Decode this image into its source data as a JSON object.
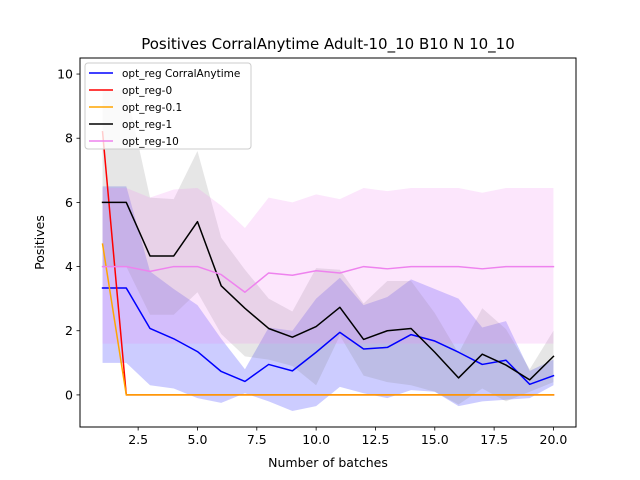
{
  "chart_data": {
    "type": "line",
    "title": "Positives CorralAnytime Adult-10_10 B10 N 10_10",
    "xlabel": "Number of batches",
    "ylabel": "Positives",
    "xlim": [
      0.05,
      20.95
    ],
    "ylim": [
      -1.0,
      10.5
    ],
    "xticks": [
      2.5,
      5.0,
      7.5,
      10.0,
      12.5,
      15.0,
      17.5,
      20.0
    ],
    "xtick_labels": [
      "2.5",
      "5.0",
      "7.5",
      "10.0",
      "12.5",
      "15.0",
      "17.5",
      "20.0"
    ],
    "yticks": [
      0,
      2,
      4,
      6,
      8,
      10
    ],
    "ytick_labels": [
      "0",
      "2",
      "4",
      "6",
      "8",
      "10"
    ],
    "legend_position": "upper-left",
    "x": [
      1,
      2,
      3,
      4,
      5,
      6,
      7,
      8,
      9,
      10,
      11,
      12,
      13,
      14,
      15,
      16,
      17,
      18,
      19,
      20
    ],
    "series": [
      {
        "name": "opt_reg CorralAnytime",
        "color": "#0000ff",
        "band_color": "#0000ff",
        "values": [
          3.33,
          3.33,
          2.07,
          1.75,
          1.35,
          0.73,
          0.42,
          0.95,
          0.75,
          1.33,
          1.95,
          1.43,
          1.48,
          1.88,
          1.68,
          1.33,
          0.95,
          1.08,
          0.33,
          0.6
        ],
        "lower": [
          1.0,
          1.0,
          0.3,
          0.2,
          -0.1,
          -0.25,
          0.05,
          -0.2,
          -0.5,
          -0.35,
          0.25,
          0.05,
          -0.1,
          0.15,
          0.1,
          -0.35,
          -0.2,
          -0.15,
          -0.1,
          0.3
        ],
        "upper": [
          6.5,
          6.5,
          3.85,
          3.3,
          2.8,
          1.75,
          0.8,
          2.1,
          2.0,
          3.0,
          3.65,
          2.8,
          3.05,
          3.6,
          3.3,
          3.0,
          2.1,
          2.3,
          0.75,
          1.1
        ]
      },
      {
        "name": "opt_reg-0",
        "color": "#ff0000",
        "values": [
          8.2,
          0.0,
          0.0,
          0.0,
          0.0,
          0.0,
          0.0,
          0.0,
          0.0,
          0.0,
          0.0,
          0.0,
          0.0,
          0.0,
          0.0,
          0.0,
          0.0,
          0.0,
          0.0,
          0.0
        ]
      },
      {
        "name": "opt_reg-0.1",
        "color": "#ffa500",
        "values": [
          4.7,
          0.0,
          0.0,
          0.0,
          0.0,
          0.0,
          0.0,
          0.0,
          0.0,
          0.0,
          0.0,
          0.0,
          0.0,
          0.0,
          0.0,
          0.0,
          0.0,
          0.0,
          0.0,
          0.0
        ]
      },
      {
        "name": "opt_reg-1",
        "color": "#000000",
        "band_color": "#808080",
        "values": [
          6.0,
          6.0,
          4.33,
          4.33,
          5.4,
          3.4,
          2.7,
          2.07,
          1.8,
          2.13,
          2.73,
          1.73,
          2.0,
          2.07,
          1.33,
          0.53,
          1.27,
          0.93,
          0.47,
          1.2
        ],
        "lower": [
          4.0,
          4.0,
          2.5,
          2.5,
          3.2,
          1.9,
          1.2,
          1.1,
          0.9,
          0.3,
          1.85,
          0.6,
          0.4,
          0.3,
          0.1,
          -0.3,
          0.2,
          -0.2,
          0.1,
          0.4
        ],
        "upper": [
          9.5,
          9.5,
          6.15,
          6.1,
          7.6,
          4.9,
          3.9,
          3.0,
          2.6,
          3.95,
          3.9,
          2.85,
          3.55,
          3.55,
          2.55,
          1.3,
          2.7,
          2.05,
          0.8,
          2.0
        ]
      },
      {
        "name": "opt_reg-10",
        "color": "#ee82ee",
        "band_color": "#ee82ee",
        "values": [
          4.0,
          4.0,
          3.85,
          4.0,
          4.0,
          3.75,
          3.2,
          3.8,
          3.73,
          3.87,
          3.8,
          4.0,
          3.93,
          4.0,
          4.0,
          4.0,
          3.93,
          4.0,
          4.0,
          4.0
        ],
        "lower": [
          1.6,
          1.6,
          1.6,
          1.6,
          1.6,
          1.6,
          1.6,
          1.6,
          1.6,
          1.6,
          1.6,
          1.6,
          1.6,
          1.6,
          1.6,
          1.6,
          1.6,
          1.6,
          1.6,
          1.6
        ],
        "upper": [
          6.45,
          6.45,
          6.15,
          6.4,
          6.45,
          5.9,
          5.2,
          6.15,
          6.0,
          6.25,
          6.1,
          6.45,
          6.35,
          6.45,
          6.45,
          6.45,
          6.3,
          6.45,
          6.45,
          6.45
        ]
      }
    ]
  }
}
